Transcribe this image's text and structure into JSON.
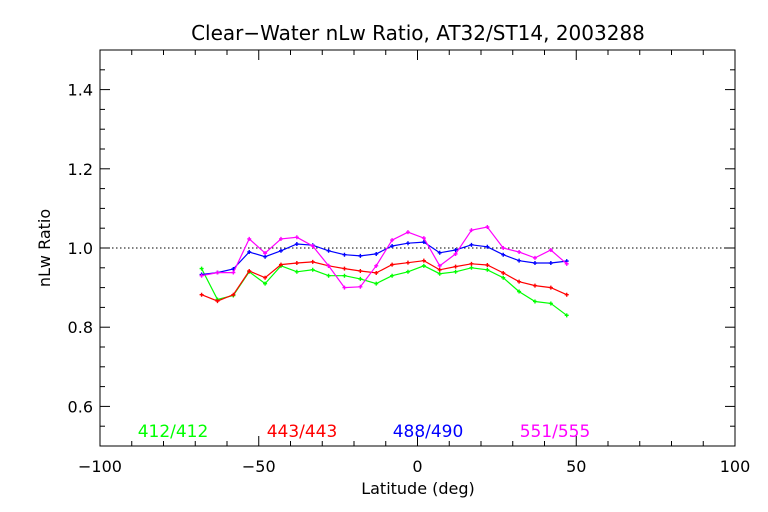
{
  "chart_data": {
    "type": "line",
    "title": "Clear−Water nLw Ratio, AT32/ST14, 2003288",
    "xlabel": "Latitude (deg)",
    "ylabel": "nLw Ratio",
    "xlim": [
      -100,
      100
    ],
    "ylim": [
      0.5,
      1.5
    ],
    "x_ticks": [
      -100,
      -50,
      0,
      50,
      100
    ],
    "x_tick_labels": [
      "−100",
      "−50",
      "0",
      "50",
      "100"
    ],
    "y_ticks": [
      0.6,
      0.8,
      1.0,
      1.2,
      1.4
    ],
    "y_tick_labels": [
      "0.6",
      "0.8",
      "1.0",
      "1.2",
      "1.4"
    ],
    "reference_line": 1.0,
    "grid": false,
    "legend_position": "bottom",
    "series": [
      {
        "name": "412/412",
        "color": "#00ff00",
        "x": [
          -68,
          -63,
          -58,
          -53,
          -48,
          -43,
          -38,
          -33,
          -28,
          -23,
          -18,
          -13,
          -8,
          -3,
          2,
          7,
          12,
          17,
          22,
          27,
          32,
          37,
          42,
          47
        ],
        "y": [
          0.948,
          0.87,
          0.88,
          0.94,
          0.91,
          0.955,
          0.94,
          0.945,
          0.93,
          0.93,
          0.922,
          0.91,
          0.93,
          0.94,
          0.955,
          0.935,
          0.94,
          0.95,
          0.945,
          0.925,
          0.89,
          0.865,
          0.86,
          0.83
        ]
      },
      {
        "name": "443/443",
        "color": "#ff0000",
        "x": [
          -68,
          -63,
          -58,
          -53,
          -48,
          -43,
          -38,
          -33,
          -28,
          -23,
          -18,
          -13,
          -8,
          -3,
          2,
          7,
          12,
          17,
          22,
          27,
          32,
          37,
          42,
          47
        ],
        "y": [
          0.882,
          0.866,
          0.882,
          0.942,
          0.925,
          0.958,
          0.962,
          0.965,
          0.955,
          0.948,
          0.942,
          0.937,
          0.958,
          0.963,
          0.968,
          0.945,
          0.953,
          0.96,
          0.957,
          0.937,
          0.915,
          0.905,
          0.9,
          0.882
        ]
      },
      {
        "name": "488/490",
        "color": "#0000ff",
        "x": [
          -68,
          -63,
          -58,
          -53,
          -48,
          -43,
          -38,
          -33,
          -28,
          -23,
          -18,
          -13,
          -8,
          -3,
          2,
          7,
          12,
          17,
          22,
          27,
          32,
          37,
          42,
          47
        ],
        "y": [
          0.933,
          0.938,
          0.947,
          0.99,
          0.978,
          0.993,
          1.01,
          1.007,
          0.993,
          0.983,
          0.98,
          0.985,
          1.005,
          1.012,
          1.015,
          0.988,
          0.995,
          1.008,
          1.003,
          0.983,
          0.968,
          0.962,
          0.962,
          0.967
        ]
      },
      {
        "name": "551/555",
        "color": "#ff00ff",
        "x": [
          -68,
          -63,
          -58,
          -53,
          -48,
          -43,
          -38,
          -33,
          -28,
          -23,
          -18,
          -13,
          -8,
          -3,
          2,
          7,
          12,
          17,
          22,
          27,
          32,
          37,
          42,
          47
        ],
        "y": [
          0.93,
          0.938,
          0.938,
          1.023,
          0.987,
          1.023,
          1.027,
          1.005,
          0.955,
          0.9,
          0.902,
          0.955,
          1.02,
          1.04,
          1.025,
          0.955,
          0.985,
          1.045,
          1.053,
          1.0,
          0.99,
          0.975,
          0.995,
          0.96
        ]
      }
    ]
  }
}
